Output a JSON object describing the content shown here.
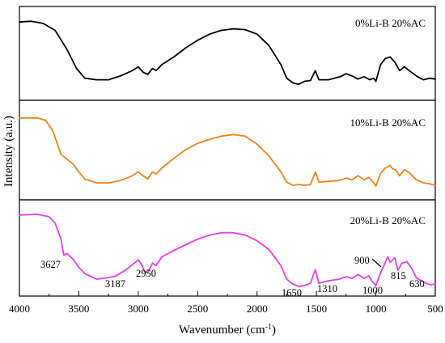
{
  "chart_data": {
    "type": "line",
    "xlabel": "Wavenumber (cm",
    "xlabel_sup": "-1",
    "xlabel_close": ")",
    "ylabel": "Intensity (a.u.)",
    "xlim": [
      4000,
      500
    ],
    "x_reversed": true,
    "xticks": [
      4000,
      3500,
      3000,
      2500,
      2000,
      1500,
      1000,
      500
    ],
    "grid": false,
    "legend": "none",
    "panels": [
      {
        "label": "0%Li-B 20%AC",
        "color": "#000000",
        "ylim": [
          0,
          1
        ],
        "points": [
          [
            4000,
            0.86
          ],
          [
            3900,
            0.87
          ],
          [
            3800,
            0.84
          ],
          [
            3700,
            0.75
          ],
          [
            3600,
            0.5
          ],
          [
            3520,
            0.25
          ],
          [
            3450,
            0.12
          ],
          [
            3350,
            0.1
          ],
          [
            3250,
            0.1
          ],
          [
            3150,
            0.15
          ],
          [
            3050,
            0.22
          ],
          [
            3000,
            0.27
          ],
          [
            2960,
            0.2
          ],
          [
            2920,
            0.17
          ],
          [
            2880,
            0.25
          ],
          [
            2850,
            0.22
          ],
          [
            2800,
            0.3
          ],
          [
            2700,
            0.4
          ],
          [
            2600,
            0.52
          ],
          [
            2500,
            0.62
          ],
          [
            2400,
            0.7
          ],
          [
            2300,
            0.75
          ],
          [
            2200,
            0.77
          ],
          [
            2100,
            0.76
          ],
          [
            2000,
            0.7
          ],
          [
            1900,
            0.55
          ],
          [
            1800,
            0.3
          ],
          [
            1750,
            0.12
          ],
          [
            1700,
            0.06
          ],
          [
            1650,
            0.04
          ],
          [
            1600,
            0.08
          ],
          [
            1550,
            0.09
          ],
          [
            1510,
            0.22
          ],
          [
            1480,
            0.1
          ],
          [
            1400,
            0.1
          ],
          [
            1300,
            0.14
          ],
          [
            1250,
            0.18
          ],
          [
            1200,
            0.15
          ],
          [
            1150,
            0.11
          ],
          [
            1100,
            0.14
          ],
          [
            1050,
            0.1
          ],
          [
            1020,
            0.12
          ],
          [
            1000,
            0.08
          ],
          [
            960,
            0.3
          ],
          [
            920,
            0.38
          ],
          [
            880,
            0.4
          ],
          [
            840,
            0.33
          ],
          [
            800,
            0.22
          ],
          [
            760,
            0.27
          ],
          [
            720,
            0.22
          ],
          [
            650,
            0.14
          ],
          [
            600,
            0.1
          ],
          [
            550,
            0.12
          ],
          [
            500,
            0.11
          ]
        ]
      },
      {
        "label": "10%Li-B 20%AC",
        "color": "#ee8214",
        "ylim": [
          0,
          1
        ],
        "points": [
          [
            4000,
            0.88
          ],
          [
            3850,
            0.88
          ],
          [
            3780,
            0.85
          ],
          [
            3720,
            0.72
          ],
          [
            3680,
            0.55
          ],
          [
            3650,
            0.42
          ],
          [
            3600,
            0.36
          ],
          [
            3550,
            0.3
          ],
          [
            3500,
            0.2
          ],
          [
            3450,
            0.11
          ],
          [
            3350,
            0.06
          ],
          [
            3250,
            0.06
          ],
          [
            3150,
            0.09
          ],
          [
            3050,
            0.15
          ],
          [
            3000,
            0.2
          ],
          [
            2960,
            0.15
          ],
          [
            2920,
            0.11
          ],
          [
            2880,
            0.2
          ],
          [
            2850,
            0.17
          ],
          [
            2800,
            0.25
          ],
          [
            2700,
            0.37
          ],
          [
            2600,
            0.48
          ],
          [
            2500,
            0.56
          ],
          [
            2400,
            0.61
          ],
          [
            2300,
            0.65
          ],
          [
            2200,
            0.67
          ],
          [
            2100,
            0.65
          ],
          [
            2000,
            0.55
          ],
          [
            1900,
            0.4
          ],
          [
            1800,
            0.2
          ],
          [
            1750,
            0.07
          ],
          [
            1700,
            0.03
          ],
          [
            1650,
            0.04
          ],
          [
            1600,
            0.03
          ],
          [
            1550,
            0.04
          ],
          [
            1510,
            0.2
          ],
          [
            1480,
            0.07
          ],
          [
            1400,
            0.08
          ],
          [
            1310,
            0.09
          ],
          [
            1250,
            0.12
          ],
          [
            1200,
            0.1
          ],
          [
            1150,
            0.15
          ],
          [
            1100,
            0.1
          ],
          [
            1060,
            0.13
          ],
          [
            1030,
            0.08
          ],
          [
            1000,
            0.02
          ],
          [
            960,
            0.18
          ],
          [
            920,
            0.25
          ],
          [
            880,
            0.28
          ],
          [
            860,
            0.24
          ],
          [
            830,
            0.22
          ],
          [
            800,
            0.15
          ],
          [
            760,
            0.23
          ],
          [
            720,
            0.19
          ],
          [
            660,
            0.1
          ],
          [
            600,
            0.06
          ],
          [
            550,
            0.05
          ],
          [
            500,
            0.03
          ]
        ]
      },
      {
        "label": "20%Li-B 20%AC",
        "color": "#e83aee",
        "ylim": [
          0,
          1
        ],
        "points": [
          [
            4000,
            0.9
          ],
          [
            3850,
            0.91
          ],
          [
            3750,
            0.88
          ],
          [
            3700,
            0.8
          ],
          [
            3650,
            0.6
          ],
          [
            3627,
            0.4
          ],
          [
            3600,
            0.42
          ],
          [
            3550,
            0.35
          ],
          [
            3500,
            0.25
          ],
          [
            3450,
            0.17
          ],
          [
            3350,
            0.1
          ],
          [
            3250,
            0.12
          ],
          [
            3187,
            0.14
          ],
          [
            3100,
            0.22
          ],
          [
            3000,
            0.34
          ],
          [
            2970,
            0.28
          ],
          [
            2950,
            0.2
          ],
          [
            2920,
            0.18
          ],
          [
            2880,
            0.3
          ],
          [
            2850,
            0.27
          ],
          [
            2800,
            0.38
          ],
          [
            2700,
            0.46
          ],
          [
            2600,
            0.53
          ],
          [
            2500,
            0.6
          ],
          [
            2400,
            0.65
          ],
          [
            2300,
            0.68
          ],
          [
            2200,
            0.68
          ],
          [
            2100,
            0.65
          ],
          [
            2000,
            0.58
          ],
          [
            1900,
            0.47
          ],
          [
            1800,
            0.27
          ],
          [
            1750,
            0.1
          ],
          [
            1700,
            0.04
          ],
          [
            1650,
            0.01
          ],
          [
            1600,
            0.02
          ],
          [
            1550,
            0.05
          ],
          [
            1510,
            0.22
          ],
          [
            1480,
            0.05
          ],
          [
            1400,
            0.08
          ],
          [
            1310,
            0.1
          ],
          [
            1250,
            0.13
          ],
          [
            1200,
            0.11
          ],
          [
            1150,
            0.16
          ],
          [
            1100,
            0.11
          ],
          [
            1060,
            0.14
          ],
          [
            1030,
            0.07
          ],
          [
            1000,
            0.02
          ],
          [
            960,
            0.18
          ],
          [
            930,
            0.28
          ],
          [
            900,
            0.38
          ],
          [
            880,
            0.31
          ],
          [
            860,
            0.34
          ],
          [
            840,
            0.37
          ],
          [
            815,
            0.21
          ],
          [
            780,
            0.3
          ],
          [
            740,
            0.32
          ],
          [
            700,
            0.24
          ],
          [
            660,
            0.12
          ],
          [
            630,
            0.09
          ],
          [
            580,
            0.05
          ],
          [
            540,
            0.03
          ],
          [
            500,
            0.04
          ]
        ],
        "annotations": [
          {
            "text": "3627",
            "x": 3627
          },
          {
            "text": "3187",
            "x": 3187
          },
          {
            "text": "2950",
            "x": 2950
          },
          {
            "text": "1650",
            "x": 1650
          },
          {
            "text": "1310",
            "x": 1310
          },
          {
            "text": "1000",
            "x": 1000
          },
          {
            "text": "900",
            "x": 900
          },
          {
            "text": "815",
            "x": 815
          },
          {
            "text": "630",
            "x": 630
          }
        ]
      }
    ]
  }
}
